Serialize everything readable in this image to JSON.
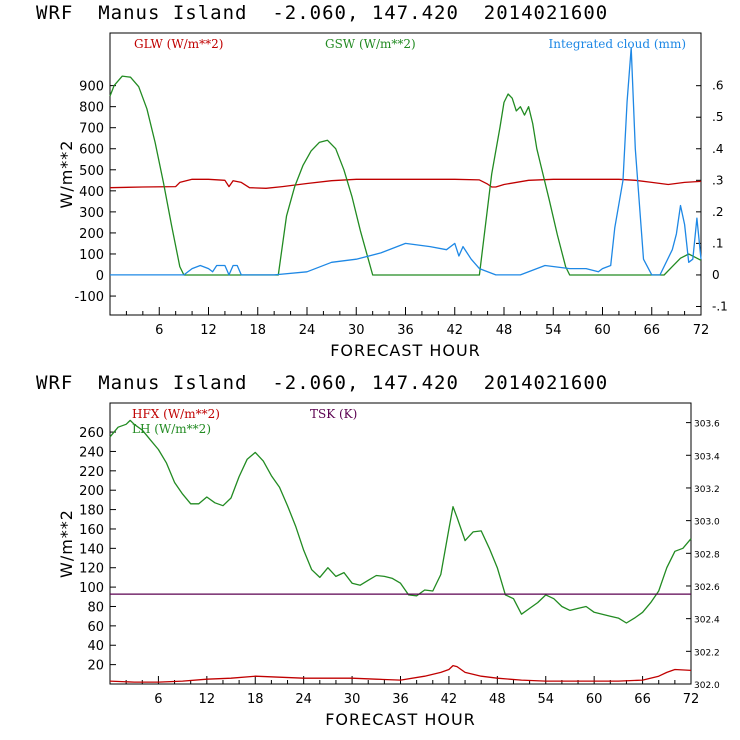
{
  "panels": [
    {
      "title": "WRF  Manus Island  -2.060, 147.420  2014021600"
    },
    {
      "title": "WRF  Manus Island  -2.060, 147.420  2014021600"
    }
  ],
  "chart_data": [
    {
      "type": "line",
      "xlabel": "FORECAST HOUR",
      "ylabel": "W/m**2",
      "xlim": [
        0,
        72
      ],
      "ylim": [
        -190,
        1150
      ],
      "y2lim": [
        -0.127,
        0.767
      ],
      "xticks": [
        "6",
        "12",
        "18",
        "24",
        "30",
        "36",
        "42",
        "48",
        "54",
        "60",
        "66",
        "72"
      ],
      "yticks": [
        "900",
        "800",
        "700",
        "600",
        "500",
        "400",
        "300",
        "200",
        "100",
        "0",
        "-100"
      ],
      "y2ticks": [
        ".6",
        ".5",
        ".4",
        ".3",
        ".2",
        ".1",
        "0",
        "-.1"
      ],
      "legend": [
        "GLW (W/m**2)",
        "GSW (W/m**2)",
        "Integrated cloud (mm)"
      ],
      "series": [
        {
          "name": "GLW (W/m**2)",
          "color": "#c00000",
          "axis": "left",
          "x": [
            0,
            4,
            8,
            8.5,
            10,
            12,
            14,
            14.5,
            15,
            16,
            17,
            19,
            21,
            24,
            27,
            30,
            33,
            36,
            39,
            42,
            45,
            46,
            46.5,
            47,
            48,
            51,
            54,
            57,
            60,
            62,
            64,
            66,
            68,
            70,
            72
          ],
          "values": [
            415,
            418,
            420,
            440,
            455,
            455,
            450,
            420,
            448,
            440,
            415,
            412,
            420,
            435,
            448,
            455,
            455,
            455,
            455,
            455,
            452,
            432,
            418,
            418,
            430,
            450,
            455,
            455,
            455,
            455,
            450,
            440,
            430,
            440,
            445
          ]
        },
        {
          "name": "GSW (W/m**2)",
          "color": "#228b22",
          "axis": "left",
          "x": [
            0,
            0.5,
            1.5,
            2.5,
            3.5,
            4.5,
            5.5,
            6.5,
            7.5,
            8.5,
            9,
            20.5,
            21.5,
            22.5,
            23.5,
            24.5,
            25.5,
            26.5,
            27.5,
            28.5,
            29.5,
            30.5,
            31.5,
            32,
            45,
            45.5,
            46.5,
            47.5,
            48,
            48.5,
            49,
            49.5,
            50,
            50.5,
            51,
            51.5,
            52,
            52.5,
            53.5,
            54.5,
            55.5,
            56,
            67.5,
            68.5,
            69.5,
            70.5,
            71,
            71.5,
            72
          ],
          "values": [
            850,
            900,
            945,
            940,
            895,
            790,
            630,
            440,
            235,
            40,
            0,
            0,
            280,
            420,
            520,
            590,
            630,
            640,
            600,
            500,
            370,
            210,
            70,
            0,
            0,
            160,
            480,
            700,
            820,
            860,
            840,
            780,
            800,
            760,
            800,
            720,
            600,
            520,
            360,
            190,
            40,
            0,
            0,
            40,
            80,
            100,
            90,
            80,
            70
          ]
        },
        {
          "name": "Integrated cloud (mm)",
          "color": "#1e88e5",
          "axis": "right",
          "x": [
            0,
            9,
            10,
            11,
            12,
            12.5,
            13,
            14,
            14.5,
            15,
            15.5,
            16,
            17,
            20,
            24,
            27,
            30,
            33,
            36,
            39,
            41,
            42,
            42.5,
            43,
            44,
            45,
            47,
            50,
            53,
            56,
            58,
            59.5,
            60,
            61,
            61.5,
            62.5,
            63,
            63.5,
            64,
            65,
            66,
            67,
            68.5,
            69,
            69.5,
            70,
            70.5,
            71,
            71.5,
            72
          ],
          "values": [
            0,
            0,
            0.02,
            0.03,
            0.02,
            0.01,
            0.03,
            0.03,
            0,
            0.03,
            0.03,
            0,
            0,
            0,
            0.01,
            0.04,
            0.05,
            0.07,
            0.1,
            0.09,
            0.08,
            0.1,
            0.06,
            0.09,
            0.05,
            0.02,
            0,
            0,
            0.03,
            0.02,
            0.02,
            0.01,
            0.02,
            0.03,
            0.15,
            0.3,
            0.55,
            0.72,
            0.4,
            0.05,
            0,
            0,
            0.08,
            0.13,
            0.22,
            0.16,
            0.04,
            0.05,
            0.18,
            0.05
          ]
        }
      ]
    },
    {
      "type": "line",
      "xlabel": "FORECAST HOUR",
      "ylabel": "W/m**2",
      "xlim": [
        0,
        72
      ],
      "ylim": [
        0,
        290
      ],
      "y2lim": [
        302.0,
        303.72
      ],
      "xticks": [
        "6",
        "12",
        "18",
        "24",
        "30",
        "36",
        "42",
        "48",
        "54",
        "60",
        "66",
        "72"
      ],
      "yticks": [
        "260",
        "240",
        "220",
        "200",
        "180",
        "160",
        "140",
        "120",
        "100",
        "80",
        "60",
        "40",
        "20"
      ],
      "y2ticks": [
        "303.6",
        "303.4",
        "303.2",
        "303.0",
        "302.8",
        "302.6",
        "302.4",
        "302.2",
        "302.0"
      ],
      "legend": [
        "HFX (W/m**2)",
        "LH  (W/m**2)",
        "TSK (K)"
      ],
      "series": [
        {
          "name": "HFX (W/m**2)",
          "color": "#c00000",
          "axis": "left",
          "x": [
            0,
            3,
            6,
            9,
            12,
            15,
            18,
            21,
            24,
            27,
            30,
            33,
            36,
            39,
            41,
            42,
            42.5,
            43,
            44,
            46,
            48,
            51,
            54,
            57,
            60,
            63,
            66,
            68,
            69,
            70,
            72
          ],
          "values": [
            3,
            2,
            2,
            3,
            5,
            6,
            8,
            7,
            6,
            6,
            6,
            5,
            4,
            8,
            12,
            15,
            19,
            18,
            12,
            8,
            6,
            4,
            3,
            3,
            3,
            3,
            4,
            8,
            12,
            15,
            14
          ]
        },
        {
          "name": "LH  (W/m**2)",
          "color": "#228b22",
          "axis": "left",
          "x": [
            0,
            1,
            2,
            2.5,
            3,
            4,
            5,
            6,
            7,
            8,
            9,
            10,
            11,
            12,
            13,
            14,
            15,
            16,
            17,
            18,
            19,
            20,
            21,
            22,
            23,
            24,
            25,
            26,
            27,
            28,
            29,
            30,
            31,
            32,
            33,
            34,
            35,
            36,
            37,
            38,
            39,
            40,
            41,
            42,
            42.5,
            43,
            44,
            45,
            46,
            47,
            48,
            49,
            50,
            51,
            52,
            53,
            54,
            55,
            56,
            57,
            58,
            59,
            60,
            61,
            62,
            63,
            64,
            65,
            66,
            67,
            68,
            69,
            70,
            71,
            72
          ],
          "values": [
            255,
            265,
            268,
            272,
            268,
            262,
            252,
            242,
            228,
            208,
            196,
            186,
            186,
            193,
            187,
            184,
            192,
            214,
            232,
            239,
            230,
            215,
            203,
            184,
            163,
            138,
            118,
            110,
            120,
            111,
            115,
            104,
            102,
            107,
            112,
            111,
            109,
            104,
            92,
            91,
            97,
            96,
            113,
            160,
            183,
            172,
            148,
            157,
            158,
            140,
            120,
            92,
            88,
            72,
            78,
            84,
            92,
            88,
            80,
            76,
            78,
            80,
            74,
            72,
            70,
            68,
            63,
            68,
            74,
            84,
            96,
            120,
            137,
            140,
            150
          ]
        },
        {
          "name": "TSK (K)",
          "color": "#5b0050",
          "axis": "right",
          "x": [
            0,
            72
          ],
          "values": [
            302.55,
            302.55
          ]
        }
      ]
    }
  ]
}
